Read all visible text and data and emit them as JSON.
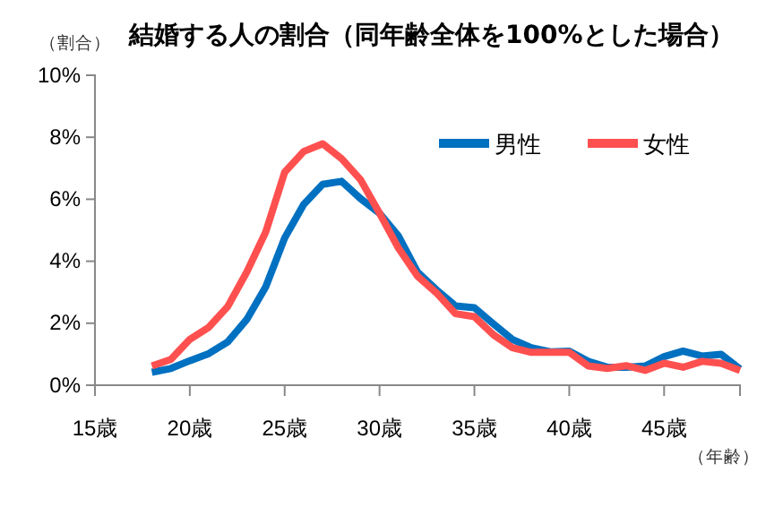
{
  "chart_data": {
    "type": "line",
    "title": "結婚する人の割合（同年齢全体を100%とした場合）",
    "ylabel": "（割合）",
    "xlabel": "（年齢）",
    "x": [
      18,
      19,
      20,
      21,
      22,
      23,
      24,
      25,
      26,
      27,
      28,
      29,
      30,
      31,
      32,
      33,
      34,
      35,
      36,
      37,
      38,
      39,
      40,
      41,
      42,
      43,
      44,
      45,
      46,
      47,
      48,
      49
    ],
    "series": [
      {
        "name": "男性",
        "color": "#0070c0",
        "values": [
          0.42,
          0.54,
          0.79,
          1.02,
          1.4,
          2.12,
          3.17,
          4.75,
          5.83,
          6.48,
          6.58,
          6.02,
          5.55,
          4.81,
          3.65,
          3.08,
          2.56,
          2.5,
          1.98,
          1.48,
          1.21,
          1.08,
          1.1,
          0.77,
          0.58,
          0.58,
          0.62,
          0.92,
          1.1,
          0.94,
          1.0,
          0.52
        ]
      },
      {
        "name": "女性",
        "color": "#ff5050",
        "values": [
          0.62,
          0.83,
          1.48,
          1.87,
          2.54,
          3.65,
          4.94,
          6.87,
          7.54,
          7.79,
          7.31,
          6.63,
          5.55,
          4.42,
          3.52,
          2.98,
          2.31,
          2.21,
          1.63,
          1.21,
          1.06,
          1.06,
          1.06,
          0.62,
          0.54,
          0.63,
          0.48,
          0.71,
          0.58,
          0.77,
          0.71,
          0.48
        ]
      }
    ],
    "xlim": [
      15,
      49
    ],
    "xticks": [
      {
        "value": 15,
        "label": "15歳"
      },
      {
        "value": 20,
        "label": "20歳"
      },
      {
        "value": 25,
        "label": "25歳"
      },
      {
        "value": 30,
        "label": "30歳"
      },
      {
        "value": 35,
        "label": "35歳"
      },
      {
        "value": 40,
        "label": "40歳"
      },
      {
        "value": 45,
        "label": "45歳"
      }
    ],
    "ylim": [
      0,
      10
    ],
    "yticks": [
      {
        "value": 0,
        "label": "0%"
      },
      {
        "value": 2,
        "label": "2%"
      },
      {
        "value": 4,
        "label": "4%"
      },
      {
        "value": 6,
        "label": "6%"
      },
      {
        "value": 8,
        "label": "8%"
      },
      {
        "value": 10,
        "label": "10%"
      }
    ],
    "grid": false,
    "legend": "top right",
    "marker": "none",
    "line_style": "solid"
  }
}
